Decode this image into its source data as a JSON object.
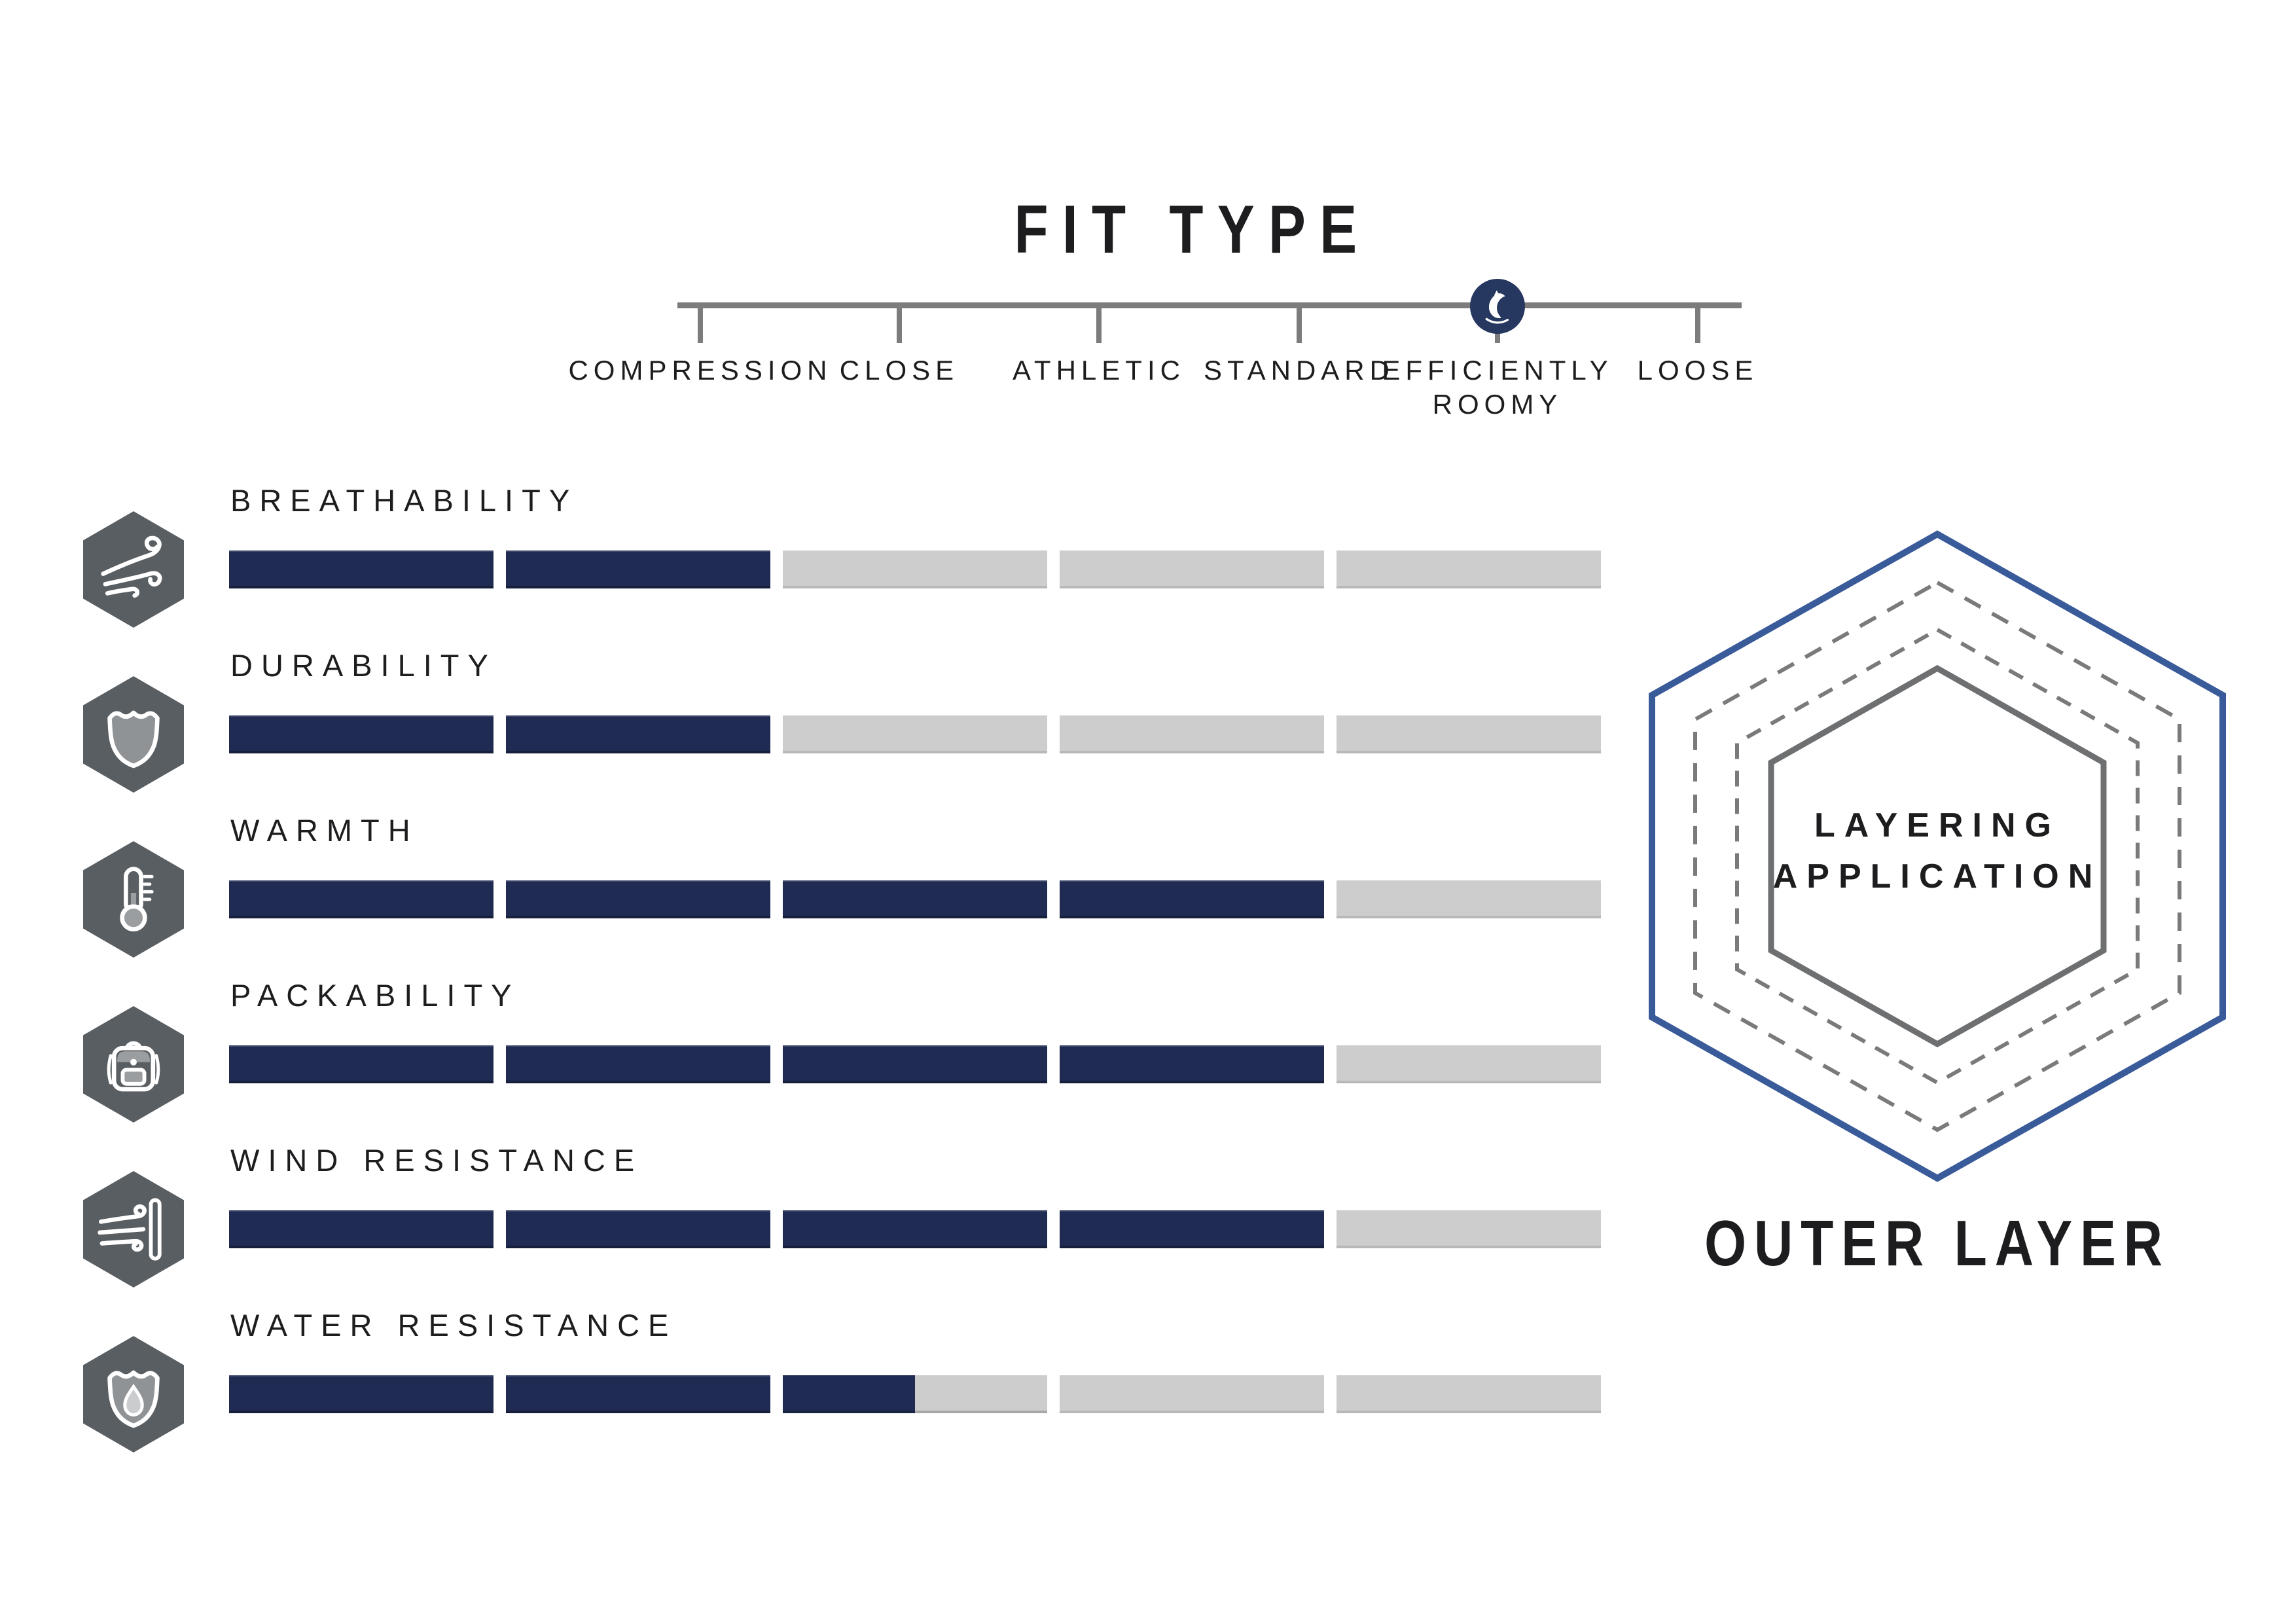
{
  "fit_scale": {
    "title": "FIT TYPE",
    "options": [
      "COMPRESSION",
      "CLOSE",
      "ATHLETIC",
      "STANDARD",
      "EFFICIENTLY ROOMY",
      "LOOSE"
    ],
    "selected": "EFFICIENTLY ROOMY",
    "selected_index": 4,
    "marker_icon": "owl-logo-icon"
  },
  "attributes": [
    {
      "label": "BREATHABILITY",
      "rating": 2,
      "max": 5,
      "icon": "wind-icon"
    },
    {
      "label": "DURABILITY",
      "rating": 2,
      "max": 5,
      "icon": "shield-icon"
    },
    {
      "label": "WARMTH",
      "rating": 4,
      "max": 5,
      "icon": "thermometer-icon"
    },
    {
      "label": "PACKABILITY",
      "rating": 4,
      "max": 5,
      "icon": "backpack-icon"
    },
    {
      "label": "WIND RESISTANCE",
      "rating": 4,
      "max": 5,
      "icon": "wind-block-icon"
    },
    {
      "label": "WATER RESISTANCE",
      "rating": 2.5,
      "max": 5,
      "icon": "water-shield-icon"
    }
  ],
  "layering": {
    "center_label_line1": "LAYERING",
    "center_label_line2": "APPLICATION",
    "caption": "OUTER LAYER"
  },
  "chart_data": {
    "type": "bar",
    "categories": [
      "BREATHABILITY",
      "DURABILITY",
      "WARMTH",
      "PACKABILITY",
      "WIND RESISTANCE",
      "WATER RESISTANCE"
    ],
    "values": [
      2,
      2,
      4,
      4,
      4,
      2.5
    ],
    "title": "",
    "xlabel": "",
    "ylabel": "",
    "ylim": [
      0,
      5
    ],
    "legend": [],
    "annotations": [
      "FIT TYPE marker on EFFICIENTLY ROOMY",
      "Layering application: OUTER LAYER"
    ]
  },
  "colors": {
    "navy": "#1f2b52",
    "bar_gray": "#cdcdce",
    "hex_tile": "#595e62",
    "scale_gray": "#7c7c7c",
    "marker_navy": "#263760",
    "outer_hex": "#3a5b9a",
    "dashed_hex": "#7a7a7a",
    "inner_hex": "#6d6f71"
  }
}
